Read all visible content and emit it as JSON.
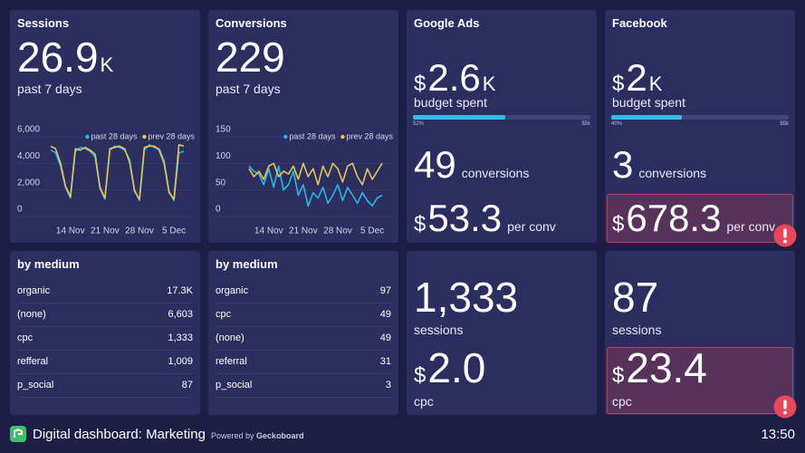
{
  "dashboard": {
    "widgets": [
      {
        "title": "Sessions",
        "value": "26.9",
        "unit": "K",
        "caption": "past 7 days",
        "chart": {
          "type": "line",
          "categories": [
            null,
            null,
            null,
            null,
            "14 Nov",
            null,
            null,
            null,
            null,
            null,
            null,
            "21 Nov",
            null,
            null,
            null,
            null,
            null,
            null,
            "28 Nov",
            null,
            null,
            null,
            null,
            null,
            null,
            "5 Dec",
            null,
            null
          ],
          "series": [
            {
              "name": "past 28 days",
              "color": "#2bb6ea",
              "values": [
                5000,
                4800,
                3800,
                2200,
                1400,
                4900,
                5200,
                5100,
                4900,
                4500,
                2100,
                1300,
                5000,
                5300,
                5200,
                5000,
                4300,
                2000,
                1200,
                5000,
                5400,
                5200,
                5100,
                4200,
                1900,
                1200,
                4800,
                4900
              ]
            },
            {
              "name": "prev 28 days",
              "color": "#e3c45c",
              "values": [
                5300,
                5100,
                4000,
                2300,
                1500,
                5100,
                5000,
                5200,
                5000,
                4700,
                2200,
                1400,
                5100,
                5200,
                5300,
                5100,
                4100,
                1900,
                1300,
                5200,
                5300,
                5300,
                5000,
                4000,
                1800,
                1300,
                5400,
                5300
              ]
            }
          ],
          "ylim": [
            0,
            6000
          ],
          "yticks": [
            0,
            {
              "value": 2000,
              "label": "2,000"
            },
            {
              "value": 4000,
              "label": "4,000"
            },
            {
              "value": 6000,
              "label": "6,000"
            }
          ],
          "grid": true
        }
      },
      {
        "title": "Conversions",
        "value": "229",
        "caption": "past 7 days",
        "chart": {
          "type": "line",
          "categories": [
            null,
            null,
            null,
            null,
            "14 Nov",
            null,
            null,
            null,
            null,
            null,
            null,
            "21 Nov",
            null,
            null,
            null,
            null,
            null,
            null,
            "28 Nov",
            null,
            null,
            null,
            null,
            null,
            null,
            "5 Dec",
            null,
            null
          ],
          "series": [
            {
              "name": "past 28 days",
              "color": "#2bb6ea",
              "values": [
                95,
                85,
                80,
                60,
                90,
                55,
                95,
                50,
                60,
                85,
                40,
                60,
                20,
                45,
                35,
                55,
                25,
                40,
                60,
                30,
                55,
                40,
                25,
                45,
                30,
                20,
                35,
                40
              ]
            },
            {
              "name": "prev 28 days",
              "color": "#e3c45c",
              "values": [
                90,
                75,
                85,
                70,
                95,
                100,
                75,
                85,
                80,
                95,
                70,
                100,
                75,
                90,
                60,
                95,
                75,
                100,
                90,
                65,
                95,
                100,
                75,
                60,
                90,
                70,
                85,
                100
              ]
            }
          ],
          "ylim": [
            0,
            150
          ],
          "yticks": [
            0,
            50,
            100,
            150
          ],
          "grid": true
        }
      },
      {
        "title": "Google Ads",
        "budget": {
          "currency": "$",
          "value": "2.6",
          "unit": "K",
          "caption": "budget spent"
        },
        "progress": {
          "value": 52,
          "label": "52%",
          "max_label": "$5k"
        },
        "conversions": {
          "value": "49",
          "caption": "conversions"
        },
        "cost": {
          "currency": "$",
          "value": "53.3",
          "caption": "per conv"
        }
      },
      {
        "title": "Facebook",
        "budget": {
          "currency": "$",
          "value": "2",
          "unit": "K",
          "caption": "budget spent"
        },
        "progress": {
          "value": 40,
          "label": "40%",
          "max_label": "$5k"
        },
        "conversions": {
          "value": "3",
          "caption": "conversions"
        },
        "cost": {
          "currency": "$",
          "value": "678.3",
          "caption": "per conv"
        }
      },
      {
        "title": "by medium",
        "rows": [
          [
            "organic",
            "17.3K"
          ],
          [
            "(none)",
            "6,603"
          ],
          [
            "cpc",
            "1,333"
          ],
          [
            "refferal",
            "1,009"
          ],
          [
            "p_social",
            "87"
          ]
        ]
      },
      {
        "title": "by medium",
        "rows": [
          [
            "organic",
            "97"
          ],
          [
            "cpc",
            "49"
          ],
          [
            "(none)",
            "49"
          ],
          [
            "referral",
            "31"
          ],
          [
            "p_social",
            "3"
          ]
        ]
      },
      {
        "sessions": {
          "value": "1,333",
          "caption": "sessions"
        },
        "cpc": {
          "currency": "$",
          "value": "2.0",
          "caption": "cpc"
        }
      },
      {
        "sessions": {
          "value": "87",
          "caption": "sessions"
        },
        "cpc": {
          "currency": "$",
          "value": "23.4",
          "caption": "cpc"
        }
      }
    ]
  },
  "footer": {
    "title": "Digital dashboard: Marketing",
    "powered_by": "Powered by",
    "brand": "Geckoboard",
    "time": "13:50"
  }
}
